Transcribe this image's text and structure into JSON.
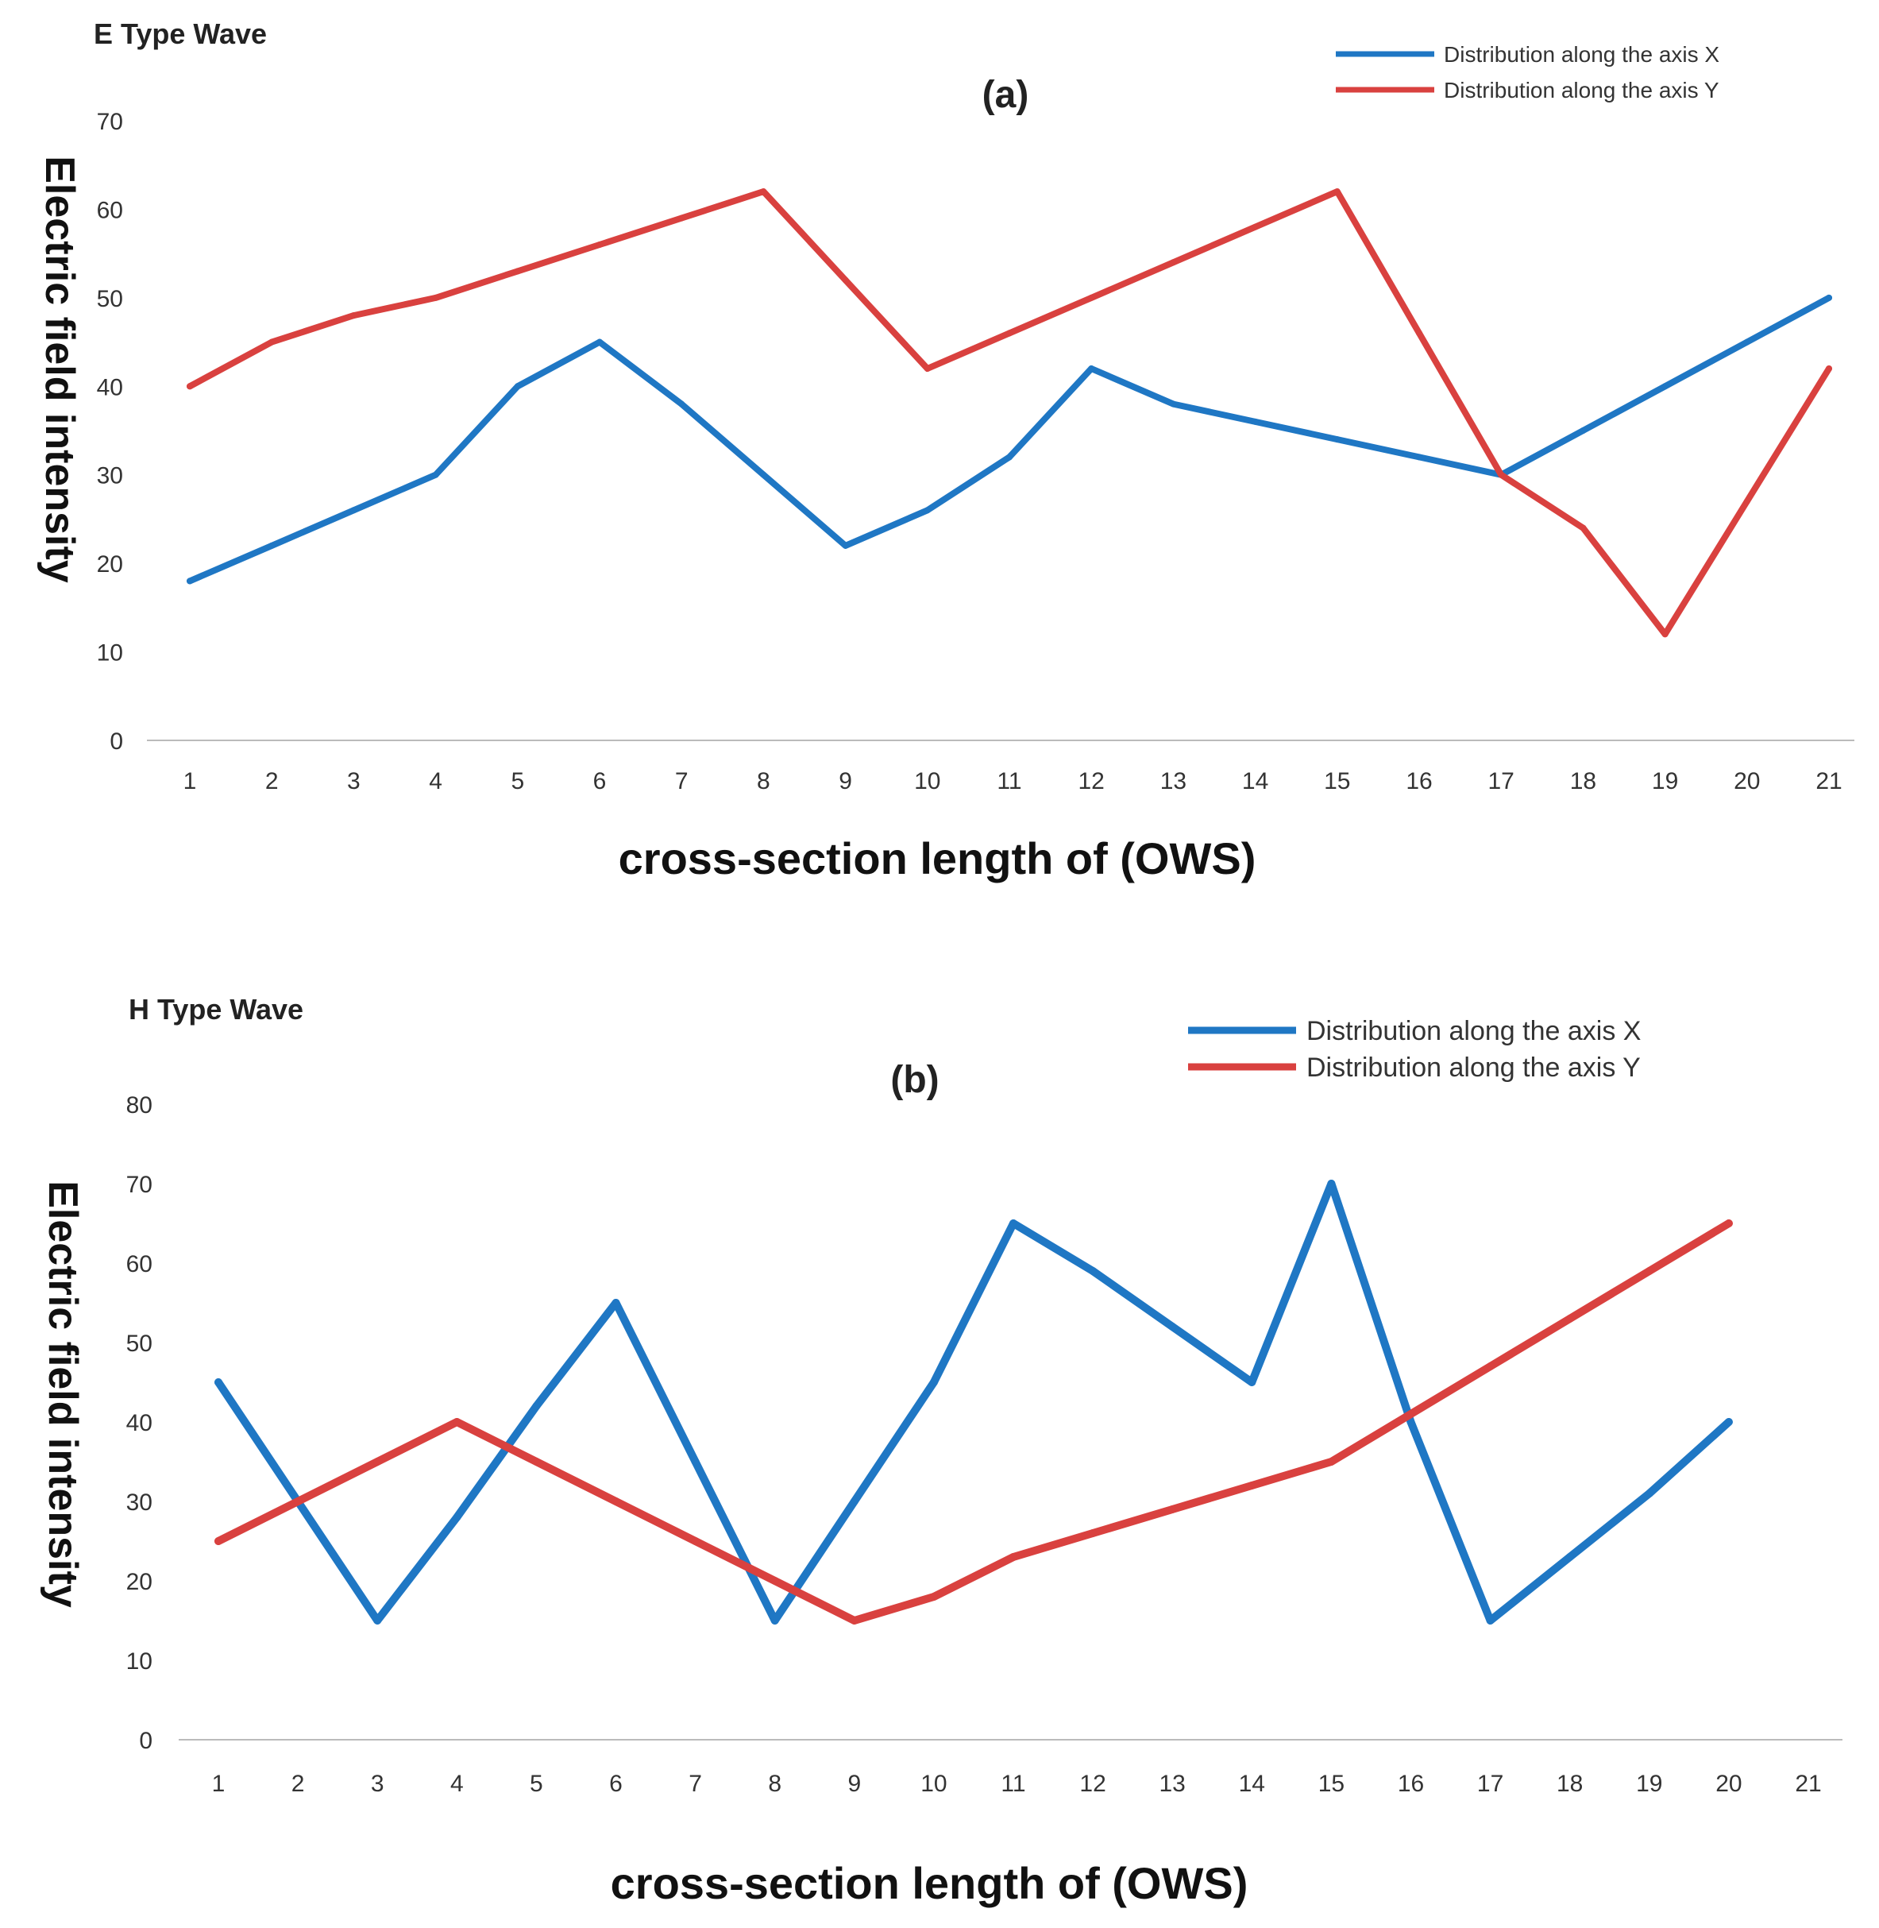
{
  "chart_data": [
    {
      "type": "line",
      "title": "E Type Wave",
      "panel_label": "(a)",
      "xlabel": "cross-section length of (OWS)",
      "ylabel": "Electric field intensity",
      "categories": [
        "1",
        "2",
        "3",
        "4",
        "5",
        "6",
        "7",
        "8",
        "9",
        "10",
        "11",
        "12",
        "13",
        "14",
        "15",
        "16",
        "17",
        "18",
        "19",
        "20",
        "21"
      ],
      "ylim": [
        0,
        70
      ],
      "yticks": [
        "0",
        "10",
        "20",
        "30",
        "40",
        "50",
        "60",
        "70"
      ],
      "grid": false,
      "legend_position": "top-right",
      "series": [
        {
          "name": "Distribution along the axis X",
          "color": "#1f77c4",
          "values": [
            18,
            22,
            26,
            30,
            40,
            45,
            38,
            30,
            22,
            26,
            32,
            42,
            38,
            36,
            34,
            32,
            30,
            35,
            40,
            45,
            50
          ]
        },
        {
          "name": "Distribution along the axis Y",
          "color": "#d9413f",
          "values": [
            40,
            45,
            48,
            50,
            53,
            56,
            59,
            62,
            52,
            42,
            46,
            50,
            54,
            58,
            62,
            46,
            30,
            24,
            12,
            27,
            42
          ]
        }
      ]
    },
    {
      "type": "line",
      "title": "H Type Wave",
      "panel_label": "(b)",
      "xlabel": "cross-section length of (OWS)",
      "ylabel": "Electric field intensity",
      "categories": [
        "1",
        "2",
        "3",
        "4",
        "5",
        "6",
        "7",
        "8",
        "9",
        "10",
        "11",
        "12",
        "13",
        "14",
        "15",
        "16",
        "17",
        "18",
        "19",
        "20",
        "21"
      ],
      "ylim": [
        0,
        80
      ],
      "yticks": [
        "0",
        "10",
        "20",
        "30",
        "40",
        "50",
        "60",
        "70",
        "80"
      ],
      "grid": false,
      "legend_position": "top-right",
      "series": [
        {
          "name": "Distribution along the axis X",
          "color": "#1f77c4",
          "values": [
            45,
            30,
            15,
            28,
            42,
            55,
            35,
            15,
            30,
            45,
            65,
            59,
            52,
            45,
            70,
            40,
            15,
            23,
            31,
            40,
            null
          ]
        },
        {
          "name": "Distribution along the axis Y",
          "color": "#d9413f",
          "values": [
            25,
            30,
            35,
            40,
            35,
            30,
            25,
            20,
            15,
            18,
            23,
            26,
            29,
            32,
            35,
            41,
            47,
            53,
            59,
            65,
            null
          ]
        }
      ]
    }
  ]
}
